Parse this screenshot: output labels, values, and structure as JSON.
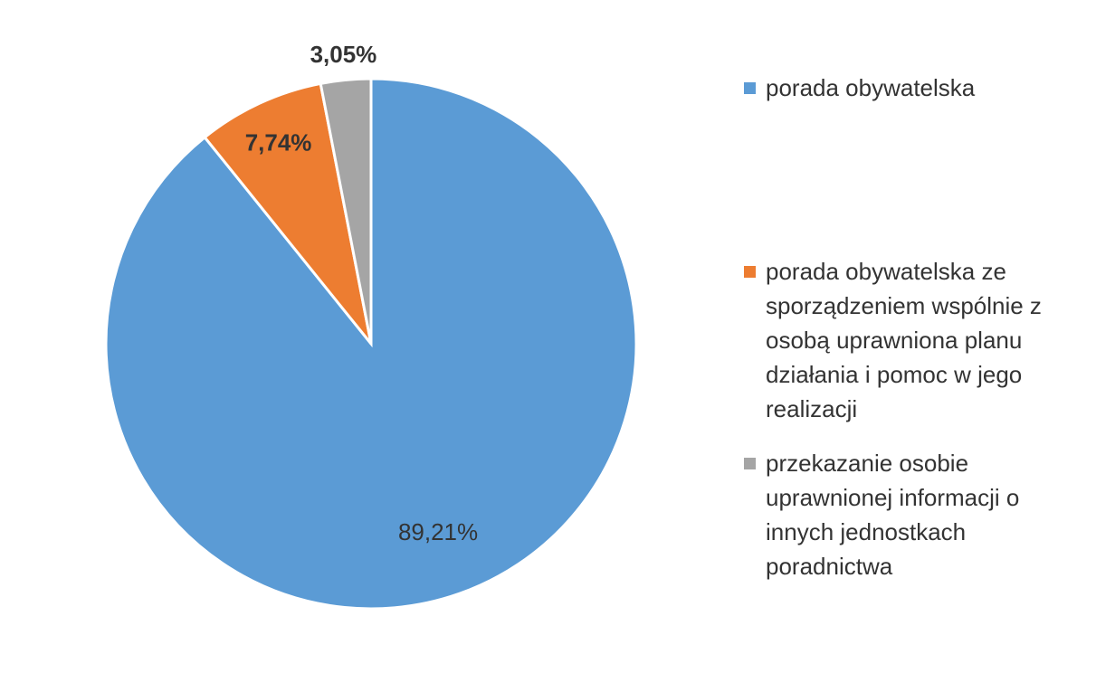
{
  "chart_data": {
    "type": "pie",
    "categories": [
      "porada obywatelska",
      "porada obywatelska ze sporządzeniem wspólnie z osobą uprawniona planu działania i pomoc w jego realizacji",
      "przekazanie osobie uprawnionej informacji o innych jednostkach poradnictwa"
    ],
    "values": [
      89.21,
      7.74,
      3.05
    ],
    "value_labels": [
      "89,21%",
      "7,74%",
      "3,05%"
    ],
    "colors": [
      "#5b9bd5",
      "#ed7d31",
      "#a5a5a5"
    ],
    "legend": "right"
  }
}
